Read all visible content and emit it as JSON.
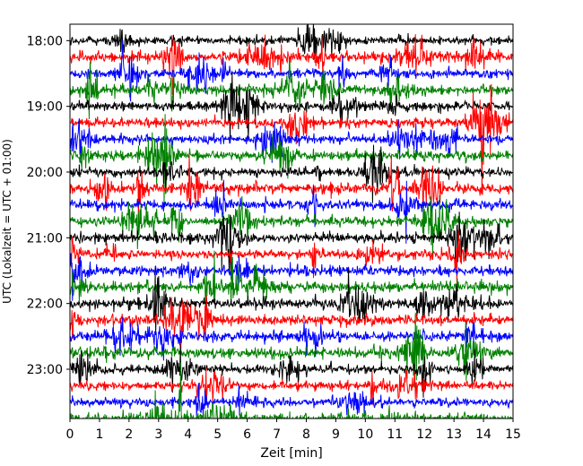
{
  "chart_data": {
    "type": "line",
    "title": "",
    "xlabel": "Zeit  [min]",
    "ylabel": "UTC (Lokalzeit = UTC + 01:00)",
    "xlim": [
      0,
      15
    ],
    "x_ticks": [
      "0",
      "1",
      "2",
      "3",
      "4",
      "5",
      "6",
      "7",
      "8",
      "9",
      "10",
      "11",
      "12",
      "13",
      "14",
      "15"
    ],
    "y_ticks": [
      "18:00",
      "19:00",
      "20:00",
      "21:00",
      "22:00",
      "23:00"
    ],
    "ylim_minutes": [
      -15,
      345
    ],
    "trace_start_minutes": 0,
    "trace_step_minutes": 15,
    "trace_count": 24,
    "colors": [
      "#000000",
      "#ff0000",
      "#0000ff",
      "#008000"
    ],
    "grid": false
  }
}
